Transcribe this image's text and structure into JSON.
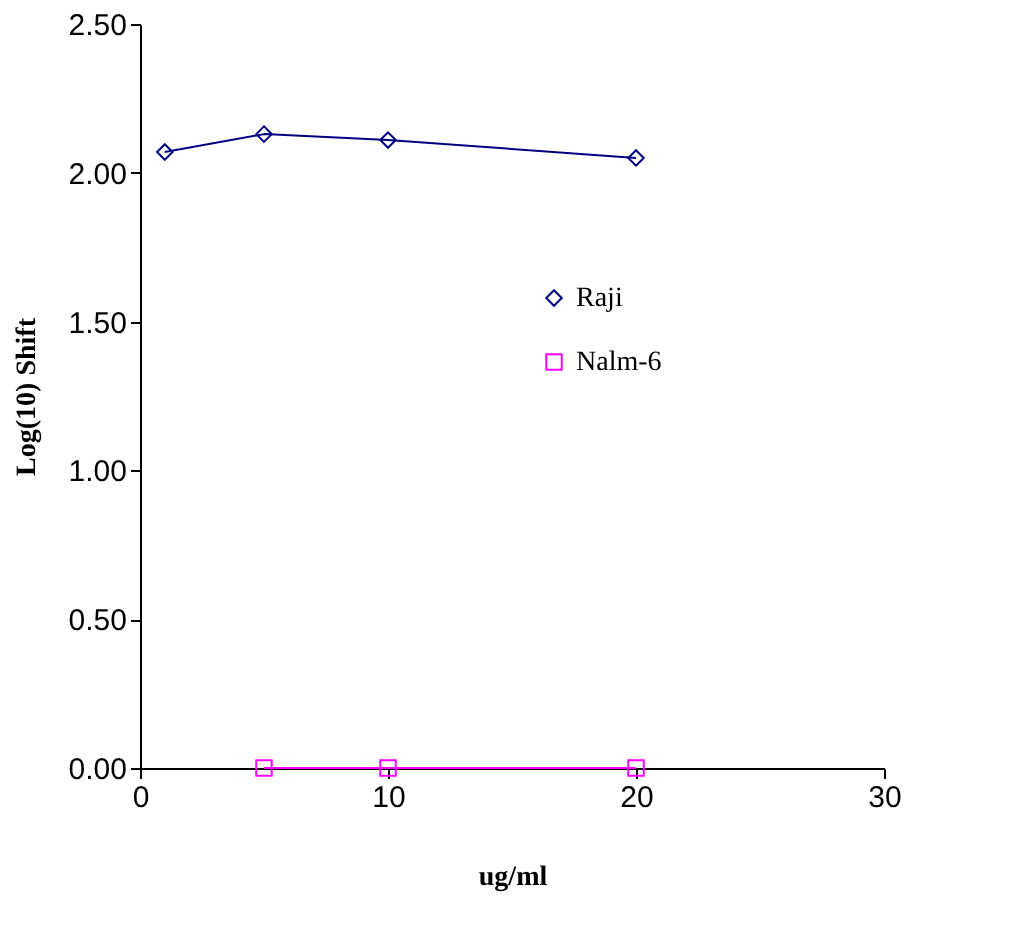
{
  "chart_data": {
    "type": "line",
    "xlabel": "ug/ml",
    "ylabel": "Log(10) Shift",
    "xlim": [
      0,
      30
    ],
    "xticks": [
      0,
      10,
      20,
      30
    ],
    "ylim": [
      0,
      2.5
    ],
    "yticks": [
      {
        "value": 0,
        "label": "0.00"
      },
      {
        "value": 0.5,
        "label": "0.50"
      },
      {
        "value": 1,
        "label": "1.00"
      },
      {
        "value": 1.5,
        "label": "1.50"
      },
      {
        "value": 2,
        "label": "2.00"
      },
      {
        "value": 2.5,
        "label": "2.50"
      }
    ],
    "grid": false,
    "legend": "right",
    "line_style": "solid",
    "series": [
      {
        "name": "Raji",
        "color": "#000080",
        "marker": "diamond",
        "x": [
          1,
          5,
          10,
          20
        ],
        "values": [
          2.07,
          2.13,
          2.11,
          2.05
        ]
      },
      {
        "name": "Nalm-6",
        "color": "#ff00ff",
        "marker": "square",
        "x": [
          5,
          10,
          20
        ],
        "values": [
          0,
          0,
          0
        ]
      }
    ]
  }
}
